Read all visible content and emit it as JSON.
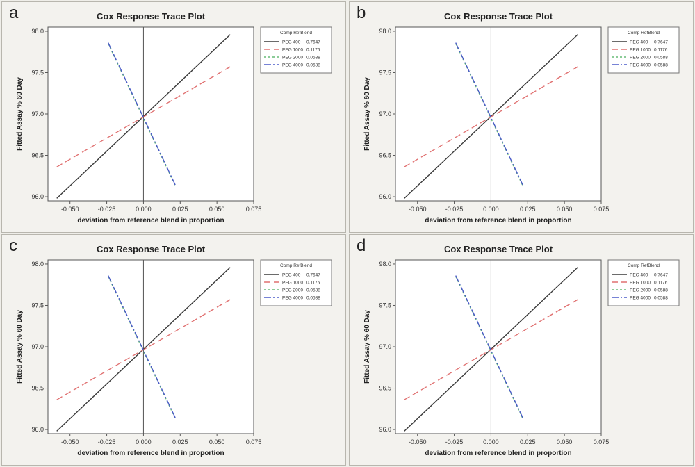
{
  "chart_data": [
    {
      "panel": "a",
      "type": "line",
      "title": "Cox Response Trace Plot",
      "xlabel": "deviation from reference blend in proportion",
      "ylabel": "Fitted Assay % 60 Day",
      "xlim": [
        -0.065,
        0.075
      ],
      "ylim": [
        95.95,
        98.05
      ],
      "xticks": [
        -0.05,
        -0.025,
        0.0,
        0.025,
        0.05,
        0.075
      ],
      "xtick_labels": [
        "-0.050",
        "-0.025",
        "0.000",
        "0.025",
        "0.050",
        "0.075"
      ],
      "yticks": [
        96.0,
        96.5,
        97.0,
        97.5,
        98.0
      ],
      "ytick_labels": [
        "96.0",
        "96.5",
        "97.0",
        "97.5",
        "98.0"
      ],
      "grid": false,
      "legend_title": "Comp RefBlend",
      "legend_position": "top-right",
      "series": [
        {
          "name": "PEG 400",
          "ref": "0.7647",
          "color": "#3a3a3a",
          "dash": "",
          "x": [
            -0.059,
            0.059
          ],
          "y": [
            95.98,
            97.96
          ]
        },
        {
          "name": "PEG 1000",
          "ref": "0.1176",
          "color": "#e07070",
          "dash": "9,5",
          "x": [
            -0.059,
            0.059
          ],
          "y": [
            96.36,
            97.57
          ]
        },
        {
          "name": "PEG 2000",
          "ref": "0.0588",
          "color": "#66bb77",
          "dash": "3,3",
          "x": [
            -0.024,
            0.022
          ],
          "y": [
            97.85,
            96.12
          ]
        },
        {
          "name": "PEG 4000",
          "ref": "0.0588",
          "color": "#4a5ac8",
          "dash": "10,3,2,3",
          "x": [
            -0.024,
            0.022
          ],
          "y": [
            97.86,
            96.13
          ]
        }
      ]
    },
    {
      "panel": "b",
      "type": "line",
      "title": "Cox Response Trace Plot",
      "xlabel": "deviation from reference blend in proportion",
      "ylabel": "Fitted Assay % 60 Day",
      "xlim": [
        -0.065,
        0.075
      ],
      "ylim": [
        95.95,
        98.05
      ],
      "xticks": [
        -0.05,
        -0.025,
        0.0,
        0.025,
        0.05,
        0.075
      ],
      "xtick_labels": [
        "-0.050",
        "-0.025",
        "0.000",
        "0.025",
        "0.050",
        "0.075"
      ],
      "yticks": [
        96.0,
        96.5,
        97.0,
        97.5,
        98.0
      ],
      "ytick_labels": [
        "96.0",
        "96.5",
        "97.0",
        "97.5",
        "98.0"
      ],
      "grid": false,
      "legend_title": "Comp RefBlend",
      "legend_position": "top-right",
      "series": [
        {
          "name": "PEG 400",
          "ref": "0.7647",
          "color": "#3a3a3a",
          "dash": "",
          "x": [
            -0.059,
            0.059
          ],
          "y": [
            95.98,
            97.96
          ]
        },
        {
          "name": "PEG 1000",
          "ref": "0.1176",
          "color": "#e07070",
          "dash": "9,5",
          "x": [
            -0.059,
            0.059
          ],
          "y": [
            96.36,
            97.57
          ]
        },
        {
          "name": "PEG 2000",
          "ref": "0.0588",
          "color": "#66bb77",
          "dash": "3,3",
          "x": [
            -0.024,
            0.022
          ],
          "y": [
            97.85,
            96.12
          ]
        },
        {
          "name": "PEG 4000",
          "ref": "0.0588",
          "color": "#4a5ac8",
          "dash": "10,3,2,3",
          "x": [
            -0.024,
            0.022
          ],
          "y": [
            97.86,
            96.13
          ]
        }
      ]
    },
    {
      "panel": "c",
      "type": "line",
      "title": "Cox Response Trace Plot",
      "xlabel": "deviation from reference blend in proportion",
      "ylabel": "Fitted Assay % 60 Day",
      "xlim": [
        -0.065,
        0.075
      ],
      "ylim": [
        95.95,
        98.05
      ],
      "xticks": [
        -0.05,
        -0.025,
        0.0,
        0.025,
        0.05,
        0.075
      ],
      "xtick_labels": [
        "-0.050",
        "-0.025",
        "0.000",
        "0.025",
        "0.050",
        "0.075"
      ],
      "yticks": [
        96.0,
        96.5,
        97.0,
        97.5,
        98.0
      ],
      "ytick_labels": [
        "96.0",
        "96.5",
        "97.0",
        "97.5",
        "98.0"
      ],
      "grid": false,
      "legend_title": "Comp RefBlend",
      "legend_position": "top-right",
      "series": [
        {
          "name": "PEG 400",
          "ref": "0.7647",
          "color": "#3a3a3a",
          "dash": "",
          "x": [
            -0.059,
            0.059
          ],
          "y": [
            95.98,
            97.96
          ]
        },
        {
          "name": "PEG 1000",
          "ref": "0.1176",
          "color": "#e07070",
          "dash": "9,5",
          "x": [
            -0.059,
            0.059
          ],
          "y": [
            96.36,
            97.57
          ]
        },
        {
          "name": "PEG 2000",
          "ref": "0.0588",
          "color": "#66bb77",
          "dash": "3,3",
          "x": [
            -0.024,
            0.022
          ],
          "y": [
            97.85,
            96.12
          ]
        },
        {
          "name": "PEG 4000",
          "ref": "0.0588",
          "color": "#4a5ac8",
          "dash": "10,3,2,3",
          "x": [
            -0.024,
            0.022
          ],
          "y": [
            97.86,
            96.13
          ]
        }
      ]
    },
    {
      "panel": "d",
      "type": "line",
      "title": "Cox Response Trace Plot",
      "xlabel": "deviation from reference blend in proportion",
      "ylabel": "Fitted Assay % 60 Day",
      "xlim": [
        -0.065,
        0.075
      ],
      "ylim": [
        95.95,
        98.05
      ],
      "xticks": [
        -0.05,
        -0.025,
        0.0,
        0.025,
        0.05,
        0.075
      ],
      "xtick_labels": [
        "-0.050",
        "-0.025",
        "0.000",
        "0.025",
        "0.050",
        "0.075"
      ],
      "yticks": [
        96.0,
        96.5,
        97.0,
        97.5,
        98.0
      ],
      "ytick_labels": [
        "96.0",
        "96.5",
        "97.0",
        "97.5",
        "98.0"
      ],
      "grid": false,
      "legend_title": "Comp RefBlend",
      "legend_position": "top-right",
      "series": [
        {
          "name": "PEG 400",
          "ref": "0.7647",
          "color": "#3a3a3a",
          "dash": "",
          "x": [
            -0.059,
            0.059
          ],
          "y": [
            95.98,
            97.96
          ]
        },
        {
          "name": "PEG 1000",
          "ref": "0.1176",
          "color": "#e07070",
          "dash": "9,5",
          "x": [
            -0.059,
            0.059
          ],
          "y": [
            96.36,
            97.57
          ]
        },
        {
          "name": "PEG 2000",
          "ref": "0.0588",
          "color": "#66bb77",
          "dash": "3,3",
          "x": [
            -0.024,
            0.022
          ],
          "y": [
            97.85,
            96.12
          ]
        },
        {
          "name": "PEG 4000",
          "ref": "0.0588",
          "color": "#4a5ac8",
          "dash": "10,3,2,3",
          "x": [
            -0.024,
            0.022
          ],
          "y": [
            97.86,
            96.13
          ]
        }
      ]
    }
  ]
}
